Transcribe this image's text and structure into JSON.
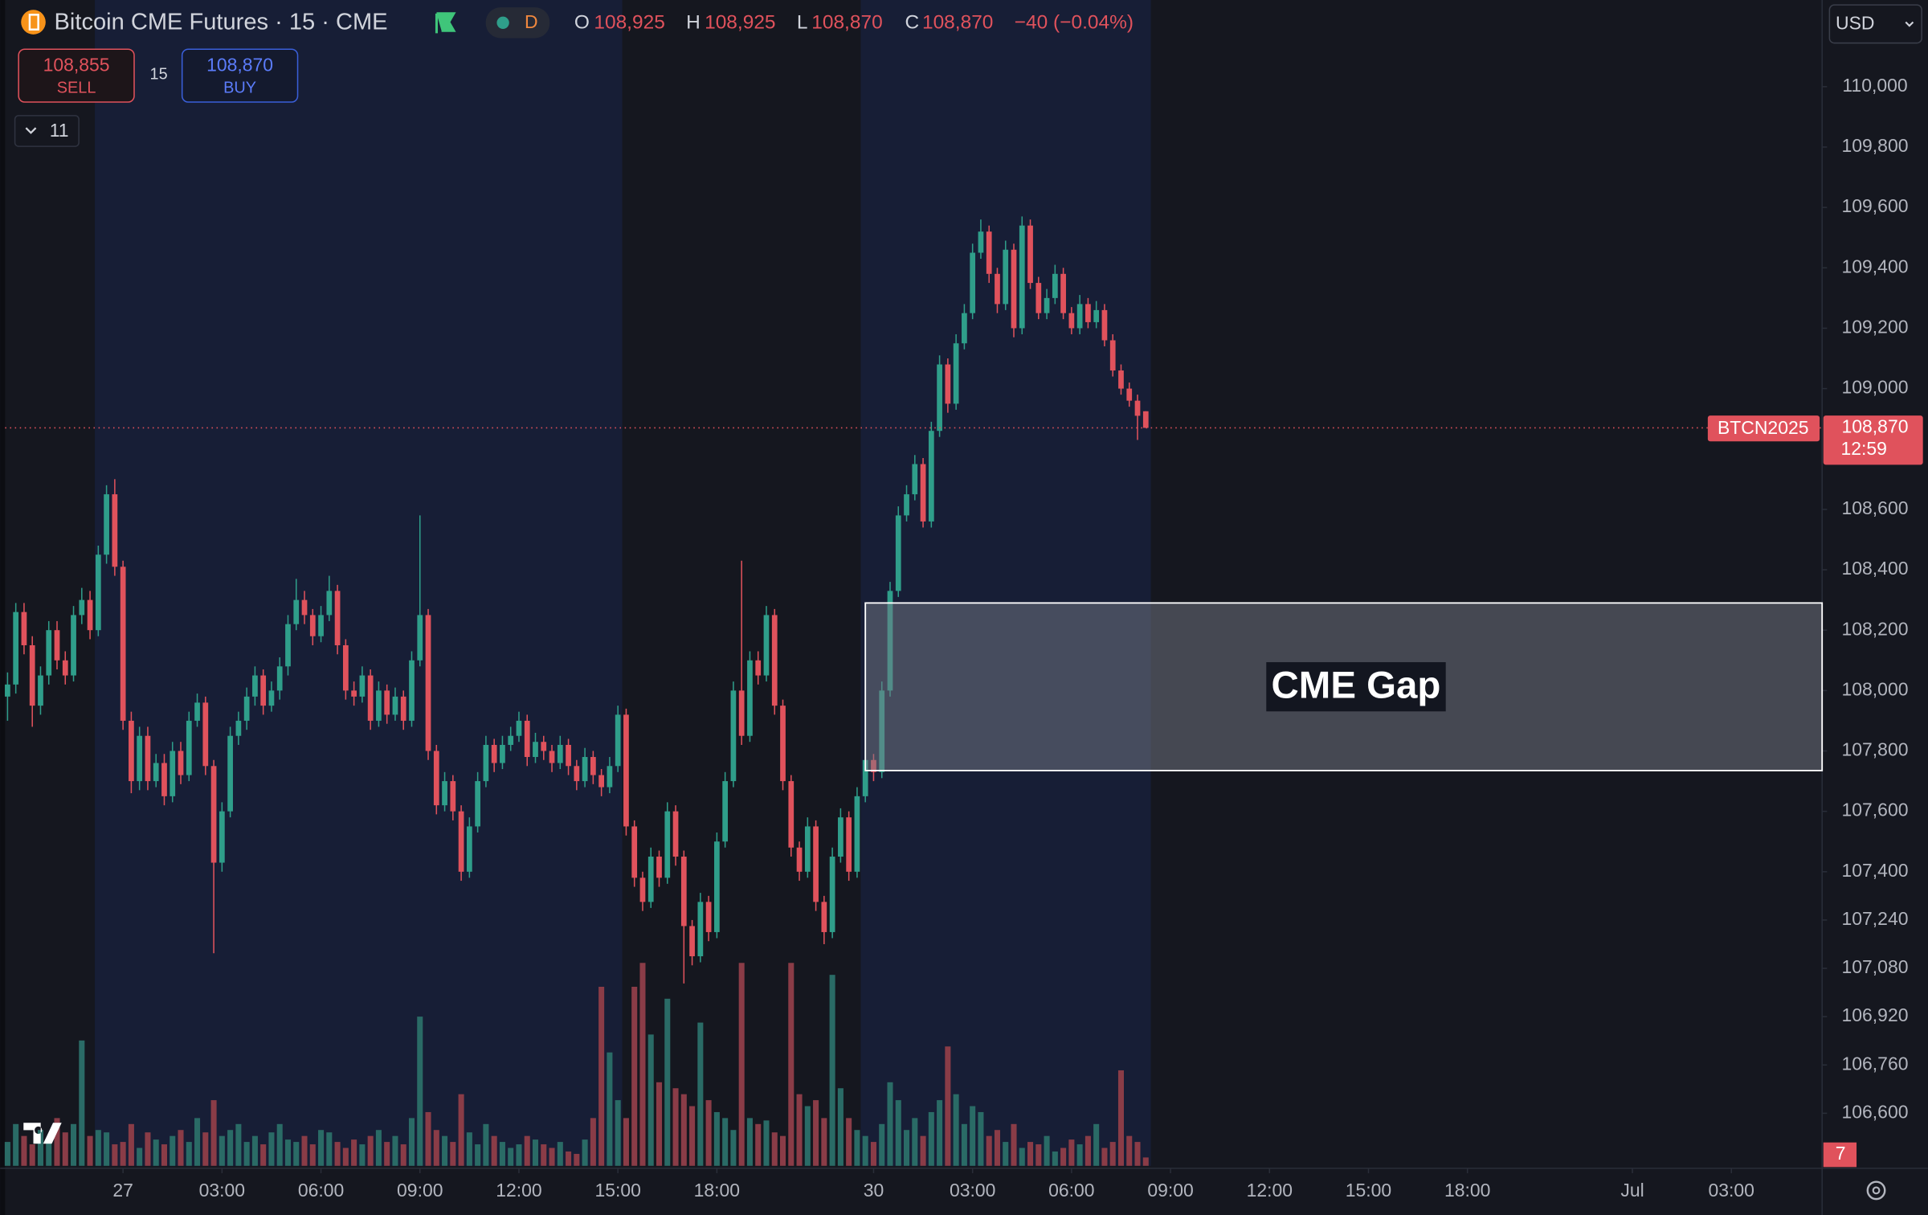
{
  "chart_data": {
    "type": "candlestick",
    "header": {
      "title": "Bitcoin CME Futures · 15 · CME",
      "session": "D",
      "legend_ohlc": [
        {
          "name": "O",
          "label": "108,925"
        },
        {
          "name": "H",
          "label": "108,925"
        },
        {
          "name": "L",
          "label": "108,870"
        },
        {
          "name": "C",
          "label": "108,870"
        }
      ],
      "change": "−40 (−0.04%)"
    },
    "trade": {
      "sell_price": "108,855",
      "sell": "SELL",
      "quantity": "15",
      "buy_price": "108,870",
      "buy": "BUY"
    },
    "indicators": "11",
    "currency": "USD",
    "symbol": "BTCN2025",
    "last_price": {
      "value": 108870,
      "label": "108,870",
      "countdown": "12:59"
    },
    "up_color": "#2f9e8a",
    "down_color": "#e0525c",
    "volume_up_color": "#2a6b66",
    "volume_down_color": "#8a3c47",
    "ylim": [
      106426,
      110287
    ],
    "yticks": [
      {
        "value": 110000,
        "label": "110,000"
      },
      {
        "value": 109800,
        "label": "109,800"
      },
      {
        "value": 109600,
        "label": "109,600"
      },
      {
        "value": 109400,
        "label": "109,400"
      },
      {
        "value": 109200,
        "label": "109,200"
      },
      {
        "value": 109000,
        "label": "109,000"
      },
      {
        "value": 108600,
        "label": "108,600"
      },
      {
        "value": 108400,
        "label": "108,400"
      },
      {
        "value": 108200,
        "label": "108,200"
      },
      {
        "value": 108000,
        "label": "108,000"
      },
      {
        "value": 107800,
        "label": "107,800"
      },
      {
        "value": 107600,
        "label": "107,600"
      },
      {
        "value": 107400,
        "label": "107,400"
      },
      {
        "value": 107240,
        "label": "107,240"
      },
      {
        "value": 107080,
        "label": "107,080"
      },
      {
        "value": 106920,
        "label": "106,920"
      },
      {
        "value": 106760,
        "label": "106,760"
      },
      {
        "value": 106600,
        "label": "106,600"
      }
    ],
    "xlim": [
      -0.3,
      220
    ],
    "xticks": [
      {
        "value": 14,
        "label": "27"
      },
      {
        "value": 26,
        "label": "03:00"
      },
      {
        "value": 38,
        "label": "06:00"
      },
      {
        "value": 50,
        "label": "09:00"
      },
      {
        "value": 62,
        "label": "12:00"
      },
      {
        "value": 74,
        "label": "15:00"
      },
      {
        "value": 86,
        "label": "18:00"
      },
      {
        "value": 105,
        "label": "30"
      },
      {
        "value": 117,
        "label": "03:00"
      },
      {
        "value": 129,
        "label": "06:00"
      },
      {
        "value": 141,
        "label": "09:00"
      },
      {
        "value": 153,
        "label": "12:00"
      },
      {
        "value": 165,
        "label": "15:00"
      },
      {
        "value": 177,
        "label": "18:00"
      },
      {
        "value": 197,
        "label": "Jul"
      },
      {
        "value": 209,
        "label": "03:00"
      }
    ],
    "annotation": {
      "text": "CME Gap",
      "x_start": 104,
      "top": 108290,
      "bottom": 107735
    },
    "ohlc": [
      [
        107980,
        108060,
        107900,
        108020
      ],
      [
        108020,
        108290,
        107990,
        108260
      ],
      [
        108260,
        108290,
        108120,
        108150
      ],
      [
        108150,
        108180,
        107880,
        107950
      ],
      [
        107950,
        108080,
        107920,
        108050
      ],
      [
        108050,
        108230,
        108020,
        108200
      ],
      [
        108200,
        108230,
        108070,
        108100
      ],
      [
        108100,
        108130,
        108020,
        108050
      ],
      [
        108050,
        108280,
        108030,
        108250
      ],
      [
        108250,
        108340,
        108220,
        108300
      ],
      [
        108300,
        108330,
        108170,
        108200
      ],
      [
        108200,
        108480,
        108180,
        108450
      ],
      [
        108450,
        108680,
        108420,
        108650
      ],
      [
        108650,
        108700,
        108380,
        108410
      ],
      [
        108410,
        108430,
        107870,
        107900
      ],
      [
        107900,
        107930,
        107660,
        107700
      ],
      [
        107700,
        107880,
        107670,
        107850
      ],
      [
        107850,
        107880,
        107670,
        107700
      ],
      [
        107700,
        107790,
        107680,
        107760
      ],
      [
        107760,
        107790,
        107620,
        107650
      ],
      [
        107650,
        107830,
        107630,
        107800
      ],
      [
        107800,
        107830,
        107690,
        107720
      ],
      [
        107720,
        107930,
        107700,
        107900
      ],
      [
        107900,
        107990,
        107880,
        107960
      ],
      [
        107960,
        107980,
        107720,
        107750
      ],
      [
        107750,
        107770,
        107130,
        107430
      ],
      [
        107430,
        107630,
        107400,
        107600
      ],
      [
        107600,
        107880,
        107580,
        107850
      ],
      [
        107850,
        107930,
        107820,
        107900
      ],
      [
        107900,
        108010,
        107870,
        107980
      ],
      [
        107980,
        108080,
        107950,
        108050
      ],
      [
        108050,
        108070,
        107920,
        107950
      ],
      [
        107950,
        108030,
        107930,
        108000
      ],
      [
        108000,
        108110,
        107970,
        108080
      ],
      [
        108080,
        108250,
        108050,
        108220
      ],
      [
        108220,
        108370,
        108200,
        108300
      ],
      [
        108300,
        108330,
        108220,
        108250
      ],
      [
        108250,
        108270,
        108150,
        108180
      ],
      [
        108180,
        108280,
        108160,
        108250
      ],
      [
        108250,
        108380,
        108230,
        108330
      ],
      [
        108330,
        108350,
        108120,
        108150
      ],
      [
        108150,
        108170,
        107970,
        108000
      ],
      [
        108000,
        108030,
        107950,
        107980
      ],
      [
        107980,
        108080,
        107960,
        108050
      ],
      [
        108050,
        108070,
        107870,
        107900
      ],
      [
        107900,
        108030,
        107880,
        108000
      ],
      [
        108000,
        108020,
        107890,
        107920
      ],
      [
        107920,
        108010,
        107900,
        107980
      ],
      [
        107980,
        108000,
        107870,
        107900
      ],
      [
        107900,
        108130,
        107880,
        108100
      ],
      [
        108100,
        108580,
        108080,
        108250
      ],
      [
        108250,
        108270,
        107770,
        107800
      ],
      [
        107800,
        107820,
        107590,
        107620
      ],
      [
        107620,
        107730,
        107600,
        107700
      ],
      [
        107700,
        107720,
        107570,
        107600
      ],
      [
        107600,
        107620,
        107370,
        107400
      ],
      [
        107400,
        107580,
        107380,
        107550
      ],
      [
        107550,
        107730,
        107530,
        107700
      ],
      [
        107700,
        107850,
        107680,
        107820
      ],
      [
        107820,
        107840,
        107730,
        107760
      ],
      [
        107760,
        107850,
        107740,
        107820
      ],
      [
        107820,
        107880,
        107800,
        107850
      ],
      [
        107850,
        107930,
        107830,
        107900
      ],
      [
        107900,
        107920,
        107750,
        107780
      ],
      [
        107780,
        107860,
        107760,
        107830
      ],
      [
        107830,
        107850,
        107770,
        107800
      ],
      [
        107800,
        107820,
        107730,
        107760
      ],
      [
        107760,
        107850,
        107740,
        107820
      ],
      [
        107820,
        107840,
        107720,
        107750
      ],
      [
        107750,
        107770,
        107670,
        107700
      ],
      [
        107700,
        107810,
        107680,
        107780
      ],
      [
        107780,
        107800,
        107690,
        107720
      ],
      [
        107720,
        107740,
        107650,
        107680
      ],
      [
        107680,
        107780,
        107660,
        107750
      ],
      [
        107750,
        107950,
        107730,
        107920
      ],
      [
        107920,
        107940,
        107520,
        107550
      ],
      [
        107550,
        107570,
        107350,
        107380
      ],
      [
        107380,
        107400,
        107270,
        107300
      ],
      [
        107300,
        107480,
        107280,
        107450
      ],
      [
        107450,
        107470,
        107350,
        107380
      ],
      [
        107380,
        107630,
        107360,
        107600
      ],
      [
        107600,
        107620,
        107420,
        107450
      ],
      [
        107450,
        107470,
        107030,
        107220
      ],
      [
        107220,
        107240,
        107090,
        107120
      ],
      [
        107120,
        107330,
        107100,
        107300
      ],
      [
        107300,
        107320,
        107170,
        107200
      ],
      [
        107200,
        107530,
        107180,
        107500
      ],
      [
        107500,
        107730,
        107480,
        107700
      ],
      [
        107700,
        108030,
        107680,
        108000
      ],
      [
        108000,
        108430,
        107820,
        107850
      ],
      [
        107850,
        108130,
        107830,
        108100
      ],
      [
        108100,
        108130,
        108020,
        108050
      ],
      [
        108050,
        108280,
        108030,
        108250
      ],
      [
        108250,
        108270,
        107920,
        107950
      ],
      [
        107950,
        107970,
        107670,
        107700
      ],
      [
        107700,
        107720,
        107450,
        107480
      ],
      [
        107480,
        107500,
        107370,
        107400
      ],
      [
        107400,
        107580,
        107380,
        107550
      ],
      [
        107550,
        107570,
        107270,
        107300
      ],
      [
        107300,
        107320,
        107160,
        107200
      ],
      [
        107200,
        107480,
        107180,
        107450
      ],
      [
        107450,
        107610,
        107430,
        107580
      ],
      [
        107580,
        107600,
        107370,
        107400
      ],
      [
        107400,
        107680,
        107380,
        107650
      ],
      [
        107650,
        107800,
        107630,
        107770
      ],
      [
        107770,
        107790,
        107700,
        107730
      ],
      [
        107730,
        108030,
        107710,
        108000
      ],
      [
        108000,
        108360,
        107980,
        108330
      ],
      [
        108330,
        108610,
        108310,
        108580
      ],
      [
        108580,
        108680,
        108560,
        108650
      ],
      [
        108650,
        108780,
        108630,
        108750
      ],
      [
        108750,
        108770,
        108540,
        108560
      ],
      [
        108560,
        108890,
        108540,
        108860
      ],
      [
        108860,
        109110,
        108840,
        109080
      ],
      [
        109080,
        109100,
        108920,
        108950
      ],
      [
        108950,
        109180,
        108930,
        109150
      ],
      [
        109150,
        109280,
        109130,
        109250
      ],
      [
        109250,
        109480,
        109230,
        109450
      ],
      [
        109450,
        109560,
        109430,
        109520
      ],
      [
        109520,
        109540,
        109350,
        109380
      ],
      [
        109380,
        109400,
        109250,
        109280
      ],
      [
        109280,
        109490,
        109260,
        109460
      ],
      [
        109460,
        109480,
        109170,
        109200
      ],
      [
        109200,
        109570,
        109180,
        109540
      ],
      [
        109540,
        109560,
        109330,
        109350
      ],
      [
        109350,
        109370,
        109230,
        109250
      ],
      [
        109250,
        109330,
        109230,
        109300
      ],
      [
        109300,
        109410,
        109280,
        109380
      ],
      [
        109380,
        109400,
        109230,
        109250
      ],
      [
        109250,
        109270,
        109180,
        109200
      ],
      [
        109200,
        109310,
        109180,
        109280
      ],
      [
        109280,
        109300,
        109200,
        109220
      ],
      [
        109220,
        109290,
        109200,
        109260
      ],
      [
        109260,
        109280,
        109140,
        109160
      ],
      [
        109160,
        109180,
        109040,
        109060
      ],
      [
        109060,
        109080,
        108980,
        109000
      ],
      [
        109000,
        109020,
        108940,
        108960
      ],
      [
        108960,
        108980,
        108830,
        108910
      ],
      [
        108925,
        108925,
        108870,
        108870
      ]
    ],
    "volume": [
      20,
      35,
      25,
      18,
      30,
      22,
      40,
      28,
      35,
      105,
      25,
      30,
      28,
      18,
      20,
      35,
      15,
      28,
      22,
      18,
      25,
      30,
      20,
      40,
      28,
      55,
      25,
      30,
      35,
      20,
      25,
      18,
      28,
      35,
      22,
      20,
      25,
      18,
      30,
      28,
      20,
      15,
      22,
      18,
      25,
      30,
      20,
      25,
      18,
      40,
      125,
      45,
      30,
      25,
      20,
      60,
      28,
      18,
      35,
      25,
      20,
      15,
      18,
      25,
      22,
      18,
      15,
      20,
      12,
      10,
      22,
      40,
      150,
      95,
      55,
      40,
      150,
      170,
      110,
      70,
      140,
      65,
      60,
      50,
      120,
      55,
      45,
      40,
      30,
      170,
      40,
      35,
      38,
      28,
      25,
      170,
      60,
      50,
      55,
      40,
      160,
      65,
      40,
      30,
      25,
      20,
      35,
      70,
      55,
      30,
      40,
      25,
      45,
      55,
      100,
      60,
      35,
      50,
      45,
      25,
      30,
      20,
      35,
      15,
      20,
      18,
      25,
      12,
      15,
      22,
      18,
      25,
      35,
      15,
      20,
      80,
      25,
      20,
      7
    ]
  }
}
